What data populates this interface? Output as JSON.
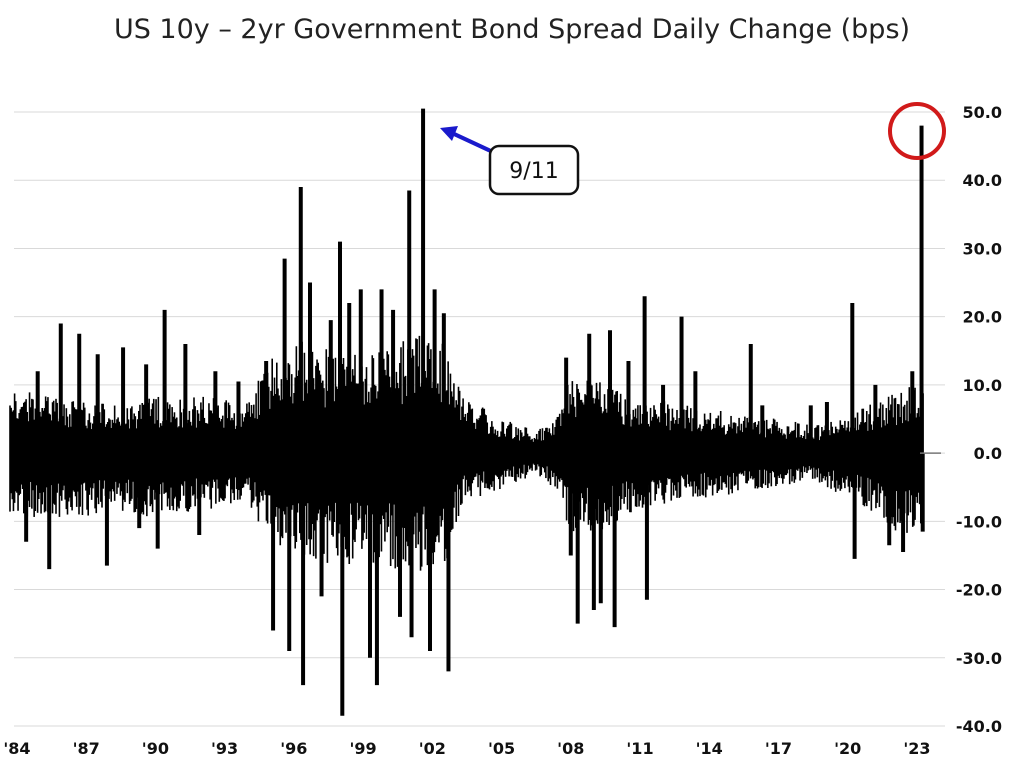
{
  "chart_data": {
    "type": "bar",
    "title": "US 10y – 2yr Government Bond Spread Daily Change (bps)",
    "xlabel": "",
    "ylabel": "",
    "ylim": [
      -40,
      50
    ],
    "xlim": [
      1983.7,
      2024.0
    ],
    "yticks": [
      {
        "value": 50,
        "label": "50.0"
      },
      {
        "value": 40,
        "label": "40.0"
      },
      {
        "value": 30,
        "label": "30.0"
      },
      {
        "value": 20,
        "label": "20.0"
      },
      {
        "value": 10,
        "label": "10.0"
      },
      {
        "value": 0,
        "label": "0.0"
      },
      {
        "value": -10,
        "label": "-10.0"
      },
      {
        "value": -20,
        "label": "-20.0"
      },
      {
        "value": -30,
        "label": "-30.0"
      },
      {
        "value": -40,
        "label": "-40.0"
      }
    ],
    "xticks": [
      {
        "value": 1984,
        "label": "'84"
      },
      {
        "value": 1987,
        "label": "'87"
      },
      {
        "value": 1990,
        "label": "'90"
      },
      {
        "value": 1993,
        "label": "'93"
      },
      {
        "value": 1996,
        "label": "'96"
      },
      {
        "value": 1999,
        "label": "'99"
      },
      {
        "value": 2002,
        "label": "'02"
      },
      {
        "value": 2005,
        "label": "'05"
      },
      {
        "value": 2008,
        "label": "'08"
      },
      {
        "value": 2011,
        "label": "'11"
      },
      {
        "value": 2014,
        "label": "'14"
      },
      {
        "value": 2017,
        "label": "'17"
      },
      {
        "value": 2020,
        "label": "'20"
      },
      {
        "value": 2023,
        "label": "'23"
      }
    ],
    "grid": true,
    "legend": "none",
    "bar_color": "#000000",
    "envelope": [
      {
        "year": 1983.7,
        "high": 9,
        "low": -9
      },
      {
        "year": 1986.0,
        "high": 8,
        "low": -10
      },
      {
        "year": 1988.0,
        "high": 7,
        "low": -8
      },
      {
        "year": 1990.0,
        "high": 8,
        "low": -9
      },
      {
        "year": 1992.0,
        "high": 8,
        "low": -8
      },
      {
        "year": 1994.0,
        "high": 7,
        "low": -7
      },
      {
        "year": 1995.0,
        "high": 14,
        "low": -13
      },
      {
        "year": 1996.5,
        "high": 16,
        "low": -16
      },
      {
        "year": 1998.0,
        "high": 14,
        "low": -16
      },
      {
        "year": 2000.0,
        "high": 15,
        "low": -16
      },
      {
        "year": 2001.5,
        "high": 17,
        "low": -17
      },
      {
        "year": 2002.6,
        "high": 15,
        "low": -16
      },
      {
        "year": 2003.3,
        "high": 8,
        "low": -7
      },
      {
        "year": 2005.0,
        "high": 5,
        "low": -5
      },
      {
        "year": 2006.5,
        "high": 3,
        "low": -3
      },
      {
        "year": 2007.3,
        "high": 5,
        "low": -5
      },
      {
        "year": 2008.0,
        "high": 11,
        "low": -11
      },
      {
        "year": 2009.5,
        "high": 10,
        "low": -11
      },
      {
        "year": 2011.0,
        "high": 8,
        "low": -8
      },
      {
        "year": 2012.5,
        "high": 7,
        "low": -7
      },
      {
        "year": 2014.5,
        "high": 6,
        "low": -6
      },
      {
        "year": 2016.5,
        "high": 5,
        "low": -5
      },
      {
        "year": 2018.5,
        "high": 4,
        "low": -4
      },
      {
        "year": 2019.8,
        "high": 5,
        "low": -6
      },
      {
        "year": 2021.0,
        "high": 7,
        "low": -8
      },
      {
        "year": 2022.5,
        "high": 9,
        "low": -12
      },
      {
        "year": 2023.2,
        "high": 10,
        "low": -11
      }
    ],
    "spikes": [
      {
        "year": 1984.4,
        "value": -13
      },
      {
        "year": 1984.9,
        "value": 12
      },
      {
        "year": 1985.4,
        "value": -17
      },
      {
        "year": 1985.9,
        "value": 19
      },
      {
        "year": 1986.7,
        "value": 17.5
      },
      {
        "year": 1987.5,
        "value": 14.5
      },
      {
        "year": 1987.9,
        "value": -16.5
      },
      {
        "year": 1988.6,
        "value": 15.5
      },
      {
        "year": 1989.3,
        "value": -11
      },
      {
        "year": 1989.6,
        "value": 13
      },
      {
        "year": 1990.1,
        "value": -14
      },
      {
        "year": 1990.4,
        "value": 21
      },
      {
        "year": 1991.3,
        "value": 16
      },
      {
        "year": 1991.9,
        "value": -12
      },
      {
        "year": 1992.6,
        "value": 12
      },
      {
        "year": 1993.6,
        "value": 10.5
      },
      {
        "year": 1994.8,
        "value": 13.5
      },
      {
        "year": 1995.1,
        "value": -26
      },
      {
        "year": 1995.6,
        "value": 28.5
      },
      {
        "year": 1995.8,
        "value": -29
      },
      {
        "year": 1996.3,
        "value": 39
      },
      {
        "year": 1996.4,
        "value": -34
      },
      {
        "year": 1996.7,
        "value": 25
      },
      {
        "year": 1997.2,
        "value": -21
      },
      {
        "year": 1997.6,
        "value": 19.5
      },
      {
        "year": 1998.0,
        "value": 31
      },
      {
        "year": 1998.1,
        "value": -38.5
      },
      {
        "year": 1998.4,
        "value": 22
      },
      {
        "year": 1998.9,
        "value": 24
      },
      {
        "year": 1999.3,
        "value": -30
      },
      {
        "year": 1999.6,
        "value": -34
      },
      {
        "year": 1999.8,
        "value": 24
      },
      {
        "year": 2000.3,
        "value": 21
      },
      {
        "year": 2000.6,
        "value": -24
      },
      {
        "year": 2001.0,
        "value": 38.5
      },
      {
        "year": 2001.1,
        "value": -27
      },
      {
        "year": 2001.6,
        "value": 50.5
      },
      {
        "year": 2001.9,
        "value": -29
      },
      {
        "year": 2002.1,
        "value": 24
      },
      {
        "year": 2002.5,
        "value": 20.5
      },
      {
        "year": 2002.7,
        "value": -32
      },
      {
        "year": 2004.2,
        "value": 6.5
      },
      {
        "year": 2007.8,
        "value": 14
      },
      {
        "year": 2008.0,
        "value": -15
      },
      {
        "year": 2008.3,
        "value": -25
      },
      {
        "year": 2008.8,
        "value": 17.5
      },
      {
        "year": 2009.0,
        "value": -23
      },
      {
        "year": 2009.3,
        "value": -22
      },
      {
        "year": 2009.7,
        "value": 18
      },
      {
        "year": 2009.9,
        "value": -25.5
      },
      {
        "year": 2010.5,
        "value": 13.5
      },
      {
        "year": 2011.2,
        "value": 23
      },
      {
        "year": 2011.3,
        "value": -21.5
      },
      {
        "year": 2012.0,
        "value": 10
      },
      {
        "year": 2012.8,
        "value": 20
      },
      {
        "year": 2013.4,
        "value": 12
      },
      {
        "year": 2015.8,
        "value": 16
      },
      {
        "year": 2016.3,
        "value": 7
      },
      {
        "year": 2018.4,
        "value": 7
      },
      {
        "year": 2019.1,
        "value": 7.5
      },
      {
        "year": 2020.2,
        "value": 22
      },
      {
        "year": 2020.3,
        "value": -15.5
      },
      {
        "year": 2021.2,
        "value": 10
      },
      {
        "year": 2021.8,
        "value": -13.5
      },
      {
        "year": 2022.4,
        "value": -14.5
      },
      {
        "year": 2022.8,
        "value": 12
      },
      {
        "year": 2023.2,
        "value": 48
      },
      {
        "year": 2023.25,
        "value": -11.5
      }
    ],
    "annotations": [
      {
        "text": "9/11",
        "year": 2001.6,
        "value": 48
      },
      {
        "text": "",
        "year": 2023.2,
        "value": 48,
        "shape": "circle",
        "color": "#d11a1a"
      }
    ]
  }
}
